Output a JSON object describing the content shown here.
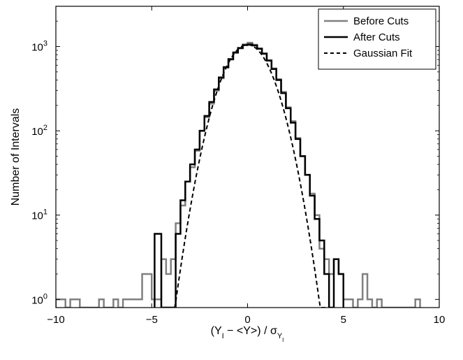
{
  "chart_data": {
    "type": "line",
    "xlabel": {
      "main": "(Y",
      "sub1": "I",
      "middle": " − <Y>) / ",
      "sigma": "σ",
      "sigma_sub": "Y",
      "sigma_subsub": "I"
    },
    "ylabel": "Number of Intervals",
    "xlim": [
      -10,
      10
    ],
    "ylim": [
      0.8,
      3000
    ],
    "yscale": "log",
    "grid": false,
    "legend_position": "top-right",
    "x_ticks": [
      {
        "value": -10,
        "label": "−10"
      },
      {
        "value": -5,
        "label": "−5"
      },
      {
        "value": 0,
        "label": "0"
      },
      {
        "value": 5,
        "label": "5"
      },
      {
        "value": 10,
        "label": "10"
      }
    ],
    "y_ticks": [
      {
        "value": 1,
        "base": "10",
        "exp": "0"
      },
      {
        "value": 10,
        "base": "10",
        "exp": "1"
      },
      {
        "value": 100,
        "base": "10",
        "exp": "2"
      },
      {
        "value": 1000,
        "base": "10",
        "exp": "3"
      }
    ],
    "series": [
      {
        "name": "Before Cuts",
        "color": "#808080",
        "style": "solid",
        "width": 2.5,
        "points": [
          [
            -10,
            0.8
          ],
          [
            -10,
            1
          ],
          [
            -9.5,
            1
          ],
          [
            -9.5,
            0.8
          ],
          [
            -9.25,
            0.8
          ],
          [
            -9.25,
            1
          ],
          [
            -8.75,
            1
          ],
          [
            -8.75,
            0.8
          ],
          [
            -7.75,
            0.8
          ],
          [
            -7.75,
            1
          ],
          [
            -7.5,
            1
          ],
          [
            -7.5,
            0.8
          ],
          [
            -7.0,
            0.8
          ],
          [
            -7.0,
            1
          ],
          [
            -6.75,
            1
          ],
          [
            -6.75,
            0.8
          ],
          [
            -6.5,
            0.8
          ],
          [
            -6.5,
            1
          ],
          [
            -5.5,
            1
          ],
          [
            -5.5,
            2
          ],
          [
            -5.0,
            2
          ],
          [
            -5.0,
            1
          ],
          [
            -4.5,
            1
          ],
          [
            -4.5,
            3
          ],
          [
            -4.25,
            3
          ],
          [
            -4.25,
            2
          ],
          [
            -4.0,
            2
          ],
          [
            -4.0,
            3
          ],
          [
            -3.75,
            3
          ],
          [
            -3.75,
            8
          ],
          [
            -3.5,
            8
          ],
          [
            -3.5,
            13
          ],
          [
            -3.25,
            13
          ],
          [
            -3.25,
            25
          ],
          [
            -3.0,
            25
          ],
          [
            -3.0,
            37
          ],
          [
            -2.75,
            37
          ],
          [
            -2.75,
            58
          ],
          [
            -2.5,
            58
          ],
          [
            -2.5,
            100
          ],
          [
            -2.25,
            100
          ],
          [
            -2.25,
            145
          ],
          [
            -2.0,
            145
          ],
          [
            -2.0,
            210
          ],
          [
            -1.75,
            210
          ],
          [
            -1.75,
            300
          ],
          [
            -1.5,
            300
          ],
          [
            -1.5,
            420
          ],
          [
            -1.25,
            420
          ],
          [
            -1.25,
            560
          ],
          [
            -1.0,
            560
          ],
          [
            -1.0,
            700
          ],
          [
            -0.75,
            700
          ],
          [
            -0.75,
            840
          ],
          [
            -0.5,
            840
          ],
          [
            -0.5,
            950
          ],
          [
            -0.25,
            950
          ],
          [
            -0.25,
            1060
          ],
          [
            0,
            1060
          ],
          [
            0,
            1110
          ],
          [
            0.25,
            1110
          ],
          [
            0.25,
            1050
          ],
          [
            0.5,
            1050
          ],
          [
            0.5,
            950
          ],
          [
            0.75,
            950
          ],
          [
            0.75,
            830
          ],
          [
            1.0,
            830
          ],
          [
            1.0,
            690
          ],
          [
            1.25,
            690
          ],
          [
            1.25,
            550
          ],
          [
            1.5,
            550
          ],
          [
            1.5,
            410
          ],
          [
            1.75,
            410
          ],
          [
            1.75,
            290
          ],
          [
            2.0,
            290
          ],
          [
            2.0,
            190
          ],
          [
            2.25,
            190
          ],
          [
            2.25,
            130
          ],
          [
            2.5,
            130
          ],
          [
            2.5,
            82
          ],
          [
            2.75,
            82
          ],
          [
            2.75,
            50
          ],
          [
            3.0,
            50
          ],
          [
            3.0,
            30
          ],
          [
            3.25,
            30
          ],
          [
            3.25,
            18
          ],
          [
            3.5,
            18
          ],
          [
            3.5,
            10
          ],
          [
            3.75,
            10
          ],
          [
            3.75,
            4
          ],
          [
            4.0,
            4
          ],
          [
            4.0,
            3
          ],
          [
            4.25,
            3
          ],
          [
            4.25,
            2
          ],
          [
            4.5,
            2
          ],
          [
            4.5,
            3
          ],
          [
            4.75,
            3
          ],
          [
            4.75,
            2
          ],
          [
            5.0,
            2
          ],
          [
            5.0,
            1
          ],
          [
            5.5,
            1
          ],
          [
            5.5,
            0.8
          ],
          [
            5.75,
            0.8
          ],
          [
            5.75,
            1
          ],
          [
            6.0,
            1
          ],
          [
            6.0,
            2
          ],
          [
            6.25,
            2
          ],
          [
            6.25,
            1
          ],
          [
            6.5,
            1
          ],
          [
            6.5,
            0.8
          ],
          [
            6.75,
            0.8
          ],
          [
            6.75,
            1
          ],
          [
            7.0,
            1
          ],
          [
            7.0,
            0.8
          ],
          [
            8.75,
            0.8
          ],
          [
            8.75,
            1
          ],
          [
            9.0,
            1
          ],
          [
            9.0,
            0.8
          ]
        ]
      },
      {
        "name": "After Cuts",
        "color": "#000000",
        "style": "solid",
        "width": 2.5,
        "points": [
          [
            -4.85,
            0.8
          ],
          [
            -4.85,
            6
          ],
          [
            -4.5,
            6
          ],
          [
            -4.5,
            0.8
          ],
          [
            -3.75,
            0.8
          ],
          [
            -3.75,
            6
          ],
          [
            -3.5,
            6
          ],
          [
            -3.5,
            15
          ],
          [
            -3.25,
            15
          ],
          [
            -3.25,
            25
          ],
          [
            -3.0,
            25
          ],
          [
            -3.0,
            40
          ],
          [
            -2.75,
            40
          ],
          [
            -2.75,
            60
          ],
          [
            -2.5,
            60
          ],
          [
            -2.5,
            100
          ],
          [
            -2.25,
            100
          ],
          [
            -2.25,
            150
          ],
          [
            -2.0,
            150
          ],
          [
            -2.0,
            220
          ],
          [
            -1.75,
            220
          ],
          [
            -1.75,
            310
          ],
          [
            -1.5,
            310
          ],
          [
            -1.5,
            430
          ],
          [
            -1.25,
            430
          ],
          [
            -1.25,
            570
          ],
          [
            -1.0,
            570
          ],
          [
            -1.0,
            710
          ],
          [
            -0.75,
            710
          ],
          [
            -0.75,
            850
          ],
          [
            -0.5,
            850
          ],
          [
            -0.5,
            960
          ],
          [
            -0.25,
            960
          ],
          [
            -0.25,
            1040
          ],
          [
            0,
            1040
          ],
          [
            0,
            1060
          ],
          [
            0.25,
            1060
          ],
          [
            0.25,
            1030
          ],
          [
            0.5,
            1030
          ],
          [
            0.5,
            940
          ],
          [
            0.75,
            940
          ],
          [
            0.75,
            820
          ],
          [
            1.0,
            820
          ],
          [
            1.0,
            680
          ],
          [
            1.25,
            680
          ],
          [
            1.25,
            540
          ],
          [
            1.5,
            540
          ],
          [
            1.5,
            400
          ],
          [
            1.75,
            400
          ],
          [
            1.75,
            280
          ],
          [
            2.0,
            280
          ],
          [
            2.0,
            185
          ],
          [
            2.25,
            185
          ],
          [
            2.25,
            125
          ],
          [
            2.5,
            125
          ],
          [
            2.5,
            80
          ],
          [
            2.75,
            80
          ],
          [
            2.75,
            50
          ],
          [
            3.0,
            50
          ],
          [
            3.0,
            30
          ],
          [
            3.25,
            30
          ],
          [
            3.25,
            17
          ],
          [
            3.5,
            17
          ],
          [
            3.5,
            9
          ],
          [
            3.75,
            9
          ],
          [
            3.75,
            5
          ],
          [
            4.0,
            5
          ],
          [
            4.0,
            2
          ],
          [
            4.25,
            2
          ],
          [
            4.25,
            0.8
          ],
          [
            4.5,
            0.8
          ],
          [
            4.5,
            3
          ],
          [
            4.75,
            3
          ],
          [
            4.75,
            2
          ],
          [
            5.0,
            2
          ],
          [
            5.0,
            0.8
          ]
        ]
      },
      {
        "name": "Gaussian Fit",
        "color": "#000000",
        "style": "dashed",
        "width": 2,
        "gaussian": {
          "amplitude": 1050,
          "mean": 0,
          "sigma": 1.0,
          "x_range": [
            -4.2,
            4.2
          ]
        }
      }
    ]
  }
}
